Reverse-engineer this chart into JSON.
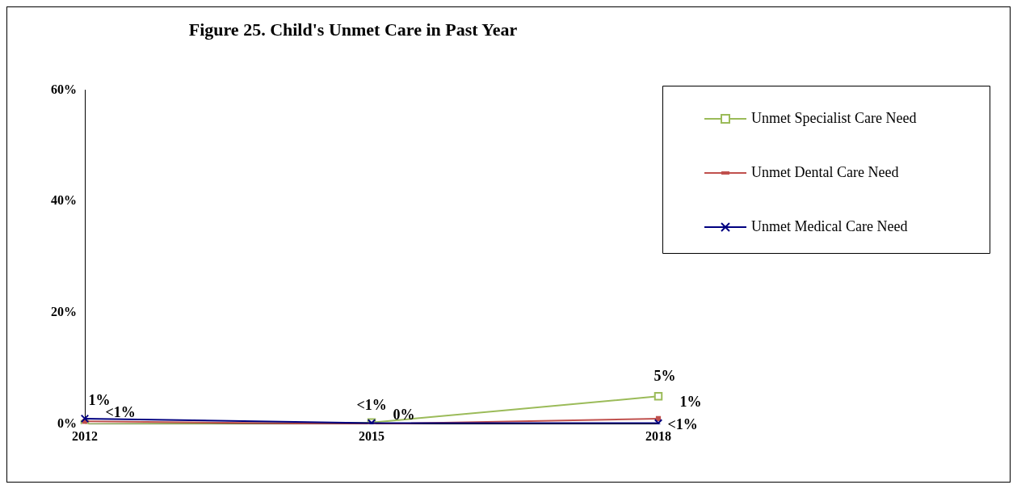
{
  "chart_data": {
    "type": "line",
    "title": "Figure 25. Child's Unmet Care in Past Year",
    "categories": [
      "2012",
      "2015",
      "2018"
    ],
    "series": [
      {
        "name": "Unmet Specialist Care Need",
        "color": "#9bbb59",
        "marker": "square",
        "values": [
          0,
          0.3,
          5
        ],
        "value_labels": [
          null,
          "<1%",
          "5%"
        ]
      },
      {
        "name": "Unmet Dental Care Need",
        "color": "#c0504d",
        "marker": "square",
        "values": [
          0.5,
          0,
          1
        ],
        "value_labels": [
          "<1%",
          "0%",
          "1%"
        ]
      },
      {
        "name": "Unmet Medical Care Need",
        "color": "#000080",
        "marker": "cross",
        "values": [
          1,
          0.2,
          0.2
        ],
        "value_labels": [
          "1%",
          null,
          "<1%"
        ]
      }
    ],
    "ylim": [
      0,
      60
    ],
    "yticks": [
      {
        "value": 0,
        "label": "0%"
      },
      {
        "value": 20,
        "label": "20%"
      },
      {
        "value": 40,
        "label": "40%"
      },
      {
        "value": 60,
        "label": "60%"
      }
    ],
    "grid": false,
    "legend": "top right"
  }
}
